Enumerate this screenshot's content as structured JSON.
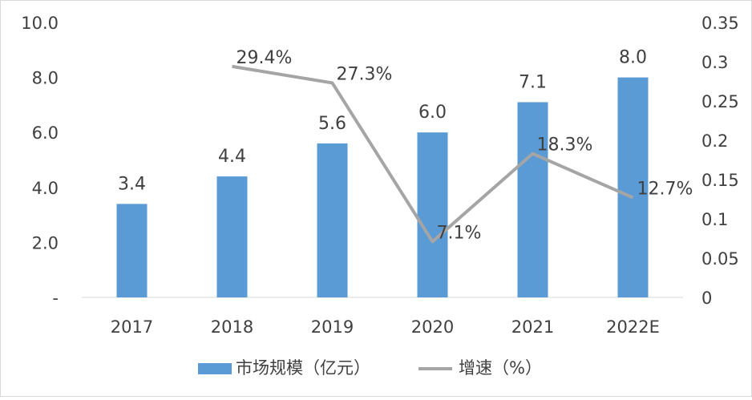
{
  "chart_data": {
    "type": "bar",
    "categories": [
      "2017",
      "2018",
      "2019",
      "2020",
      "2021",
      "2022E"
    ],
    "series": [
      {
        "name": "市场规模（亿元）",
        "type": "bar",
        "axis": "left",
        "values": [
          3.4,
          4.4,
          5.6,
          6.0,
          7.1,
          8.0
        ],
        "labels": [
          "3.4",
          "4.4",
          "5.6",
          "6.0",
          "7.1",
          "8.0"
        ],
        "color": "#5b9bd5"
      },
      {
        "name": "增速（%）",
        "type": "line",
        "axis": "right",
        "values": [
          null,
          0.294,
          0.273,
          0.071,
          0.183,
          0.127
        ],
        "labels": [
          "",
          "29.4%",
          "27.3%",
          "7.1%",
          "18.3%",
          "12.7%"
        ],
        "color": "#a5a5a5"
      }
    ],
    "y_left": {
      "min": 0,
      "max": 10,
      "ticks": [
        "-",
        "2.0",
        "4.0",
        "6.0",
        "8.0",
        "10.0"
      ]
    },
    "y_right": {
      "min": 0,
      "max": 0.35,
      "ticks": [
        "0",
        "0.05",
        "0.1",
        "0.15",
        "0.2",
        "0.25",
        "0.3",
        "0.35"
      ]
    },
    "grid": false,
    "legend_position": "bottom"
  }
}
